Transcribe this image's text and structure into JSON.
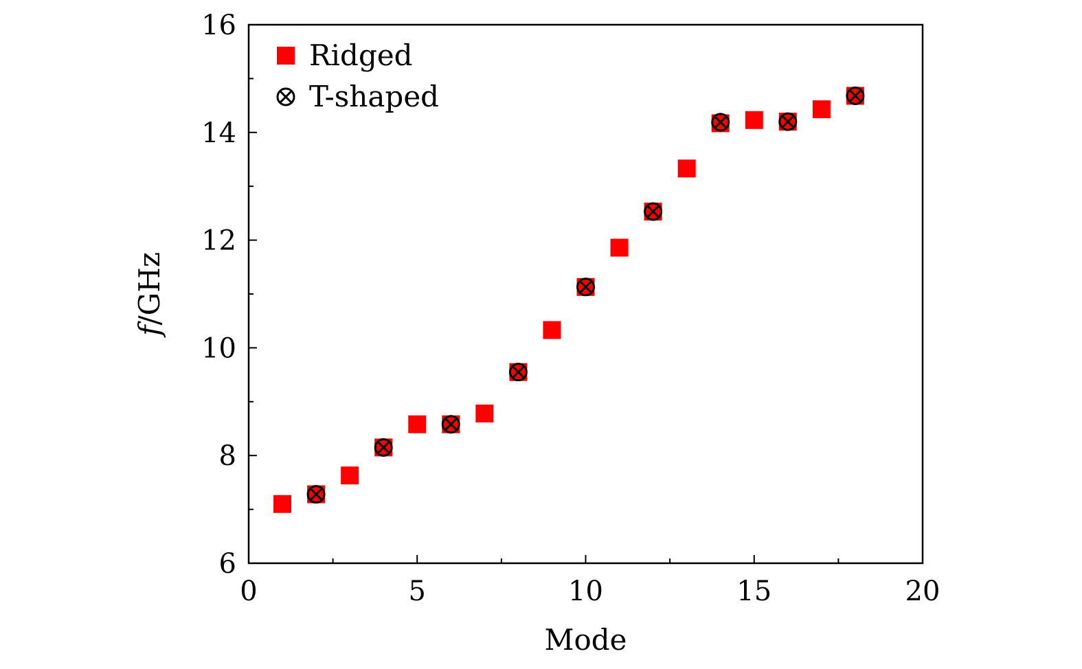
{
  "chart_data": {
    "type": "scatter",
    "title": "",
    "xlabel": "Mode",
    "ylabel": "f/GHz",
    "ylabel_parts": {
      "italic": "f",
      "rest": "/GHz"
    },
    "xlim": [
      0,
      20
    ],
    "ylim": [
      6,
      16
    ],
    "xticks": [
      0,
      5,
      10,
      15,
      20
    ],
    "yticks": [
      6,
      8,
      10,
      12,
      14,
      16
    ],
    "xminor": [
      2.5,
      7.5,
      12.5,
      17.5
    ],
    "yminor": [
      7,
      9,
      11,
      13,
      15
    ],
    "grid": false,
    "legend_position": "top-left",
    "series": [
      {
        "name": "Ridged",
        "marker": "filled-square",
        "color": "#ff0000",
        "x": [
          1,
          2,
          3,
          4,
          5,
          6,
          7,
          8,
          9,
          10,
          11,
          12,
          13,
          14,
          15,
          16,
          17,
          18
        ],
        "y": [
          7.1,
          7.28,
          7.63,
          8.15,
          8.58,
          8.58,
          8.78,
          9.55,
          10.33,
          11.13,
          11.86,
          12.53,
          13.33,
          14.17,
          14.23,
          14.2,
          14.43,
          14.68
        ]
      },
      {
        "name": "T-shaped",
        "marker": "circle-cross",
        "color": "#000000",
        "x": [
          2,
          4,
          6,
          8,
          10,
          12,
          14,
          16,
          18
        ],
        "y": [
          7.28,
          8.15,
          8.58,
          9.55,
          11.13,
          12.53,
          14.19,
          14.2,
          14.68
        ]
      }
    ]
  }
}
